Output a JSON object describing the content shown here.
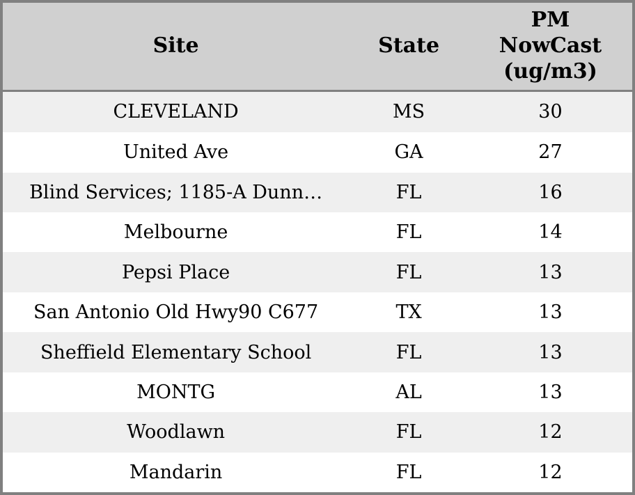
{
  "colors": {
    "border": "#808080",
    "header_bg": "#d0d0d0",
    "row_alt_bg": "#efefef",
    "row_bg": "#ffffff",
    "text": "#000000"
  },
  "chart_data": {
    "type": "table",
    "columns": [
      "Site",
      "State",
      "PM NowCast (ug/m3)"
    ],
    "rows": [
      [
        "CLEVELAND",
        "MS",
        30
      ],
      [
        "United Ave",
        "GA",
        27
      ],
      [
        "Blind Services; 1185-A Dunn…",
        "FL",
        16
      ],
      [
        "Melbourne",
        "FL",
        14
      ],
      [
        "Pepsi Place",
        "FL",
        13
      ],
      [
        "San Antonio Old Hwy90 C677",
        "TX",
        13
      ],
      [
        "Sheffield Elementary School",
        "FL",
        13
      ],
      [
        "MONTG",
        "AL",
        13
      ],
      [
        "Woodlawn",
        "FL",
        12
      ],
      [
        "Mandarin",
        "FL",
        12
      ]
    ]
  }
}
